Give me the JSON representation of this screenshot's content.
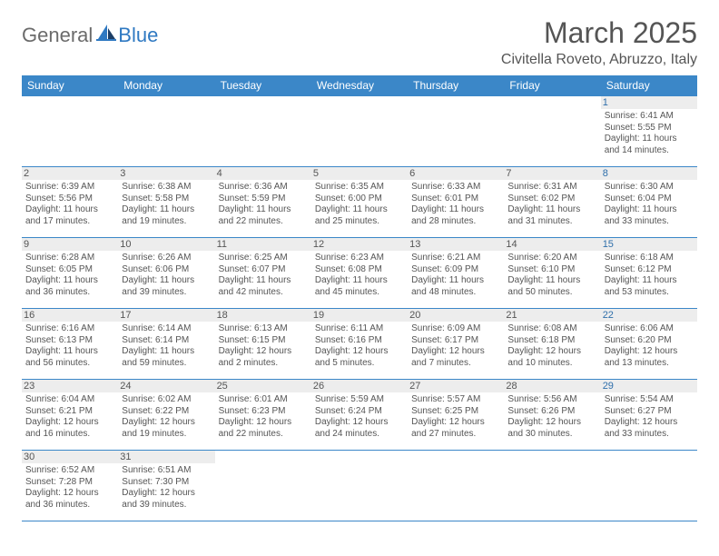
{
  "brand": {
    "part1": "General",
    "part2": "Blue"
  },
  "title": "March 2025",
  "location": "Civitella Roveto, Abruzzo, Italy",
  "colors": {
    "header_bg": "#3b87c8",
    "header_fg": "#ffffff",
    "rule": "#3b87c8",
    "daynum_bg": "#ededed",
    "text": "#555555",
    "sat_num": "#2f6fab"
  },
  "day_headers": [
    "Sunday",
    "Monday",
    "Tuesday",
    "Wednesday",
    "Thursday",
    "Friday",
    "Saturday"
  ],
  "weeks": [
    [
      null,
      null,
      null,
      null,
      null,
      null,
      {
        "n": 1,
        "sr": "6:41 AM",
        "ss": "5:55 PM",
        "dl": "11 hours and 14 minutes."
      }
    ],
    [
      {
        "n": 2,
        "sr": "6:39 AM",
        "ss": "5:56 PM",
        "dl": "11 hours and 17 minutes."
      },
      {
        "n": 3,
        "sr": "6:38 AM",
        "ss": "5:58 PM",
        "dl": "11 hours and 19 minutes."
      },
      {
        "n": 4,
        "sr": "6:36 AM",
        "ss": "5:59 PM",
        "dl": "11 hours and 22 minutes."
      },
      {
        "n": 5,
        "sr": "6:35 AM",
        "ss": "6:00 PM",
        "dl": "11 hours and 25 minutes."
      },
      {
        "n": 6,
        "sr": "6:33 AM",
        "ss": "6:01 PM",
        "dl": "11 hours and 28 minutes."
      },
      {
        "n": 7,
        "sr": "6:31 AM",
        "ss": "6:02 PM",
        "dl": "11 hours and 31 minutes."
      },
      {
        "n": 8,
        "sr": "6:30 AM",
        "ss": "6:04 PM",
        "dl": "11 hours and 33 minutes."
      }
    ],
    [
      {
        "n": 9,
        "sr": "6:28 AM",
        "ss": "6:05 PM",
        "dl": "11 hours and 36 minutes."
      },
      {
        "n": 10,
        "sr": "6:26 AM",
        "ss": "6:06 PM",
        "dl": "11 hours and 39 minutes."
      },
      {
        "n": 11,
        "sr": "6:25 AM",
        "ss": "6:07 PM",
        "dl": "11 hours and 42 minutes."
      },
      {
        "n": 12,
        "sr": "6:23 AM",
        "ss": "6:08 PM",
        "dl": "11 hours and 45 minutes."
      },
      {
        "n": 13,
        "sr": "6:21 AM",
        "ss": "6:09 PM",
        "dl": "11 hours and 48 minutes."
      },
      {
        "n": 14,
        "sr": "6:20 AM",
        "ss": "6:10 PM",
        "dl": "11 hours and 50 minutes."
      },
      {
        "n": 15,
        "sr": "6:18 AM",
        "ss": "6:12 PM",
        "dl": "11 hours and 53 minutes."
      }
    ],
    [
      {
        "n": 16,
        "sr": "6:16 AM",
        "ss": "6:13 PM",
        "dl": "11 hours and 56 minutes."
      },
      {
        "n": 17,
        "sr": "6:14 AM",
        "ss": "6:14 PM",
        "dl": "11 hours and 59 minutes."
      },
      {
        "n": 18,
        "sr": "6:13 AM",
        "ss": "6:15 PM",
        "dl": "12 hours and 2 minutes."
      },
      {
        "n": 19,
        "sr": "6:11 AM",
        "ss": "6:16 PM",
        "dl": "12 hours and 5 minutes."
      },
      {
        "n": 20,
        "sr": "6:09 AM",
        "ss": "6:17 PM",
        "dl": "12 hours and 7 minutes."
      },
      {
        "n": 21,
        "sr": "6:08 AM",
        "ss": "6:18 PM",
        "dl": "12 hours and 10 minutes."
      },
      {
        "n": 22,
        "sr": "6:06 AM",
        "ss": "6:20 PM",
        "dl": "12 hours and 13 minutes."
      }
    ],
    [
      {
        "n": 23,
        "sr": "6:04 AM",
        "ss": "6:21 PM",
        "dl": "12 hours and 16 minutes."
      },
      {
        "n": 24,
        "sr": "6:02 AM",
        "ss": "6:22 PM",
        "dl": "12 hours and 19 minutes."
      },
      {
        "n": 25,
        "sr": "6:01 AM",
        "ss": "6:23 PM",
        "dl": "12 hours and 22 minutes."
      },
      {
        "n": 26,
        "sr": "5:59 AM",
        "ss": "6:24 PM",
        "dl": "12 hours and 24 minutes."
      },
      {
        "n": 27,
        "sr": "5:57 AM",
        "ss": "6:25 PM",
        "dl": "12 hours and 27 minutes."
      },
      {
        "n": 28,
        "sr": "5:56 AM",
        "ss": "6:26 PM",
        "dl": "12 hours and 30 minutes."
      },
      {
        "n": 29,
        "sr": "5:54 AM",
        "ss": "6:27 PM",
        "dl": "12 hours and 33 minutes."
      }
    ],
    [
      {
        "n": 30,
        "sr": "6:52 AM",
        "ss": "7:28 PM",
        "dl": "12 hours and 36 minutes."
      },
      {
        "n": 31,
        "sr": "6:51 AM",
        "ss": "7:30 PM",
        "dl": "12 hours and 39 minutes."
      },
      null,
      null,
      null,
      null,
      null
    ]
  ],
  "labels": {
    "sunrise": "Sunrise:",
    "sunset": "Sunset:",
    "daylight": "Daylight:"
  }
}
